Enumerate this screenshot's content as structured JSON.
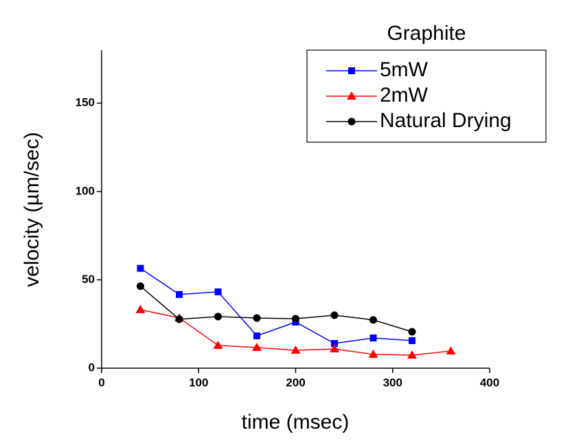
{
  "chart_data": {
    "type": "line",
    "x_label": "time (msec)",
    "y_label": "velocity (µm/sec)",
    "legend_title": "Graphite",
    "legend": "upper right",
    "grid": false,
    "xlim": [
      0,
      400
    ],
    "ylim": [
      0,
      180
    ],
    "xticks": [
      0,
      100,
      200,
      300,
      400
    ],
    "yticks": [
      0,
      50,
      100,
      150
    ],
    "series": [
      {
        "name": "5mW",
        "color": "#0000ff",
        "marker": "square",
        "x": [
          40,
          80,
          120,
          160,
          200,
          240,
          280,
          320
        ],
        "values": [
          56.5,
          41.7,
          43.2,
          18.3,
          26.1,
          14.0,
          17.1,
          15.6
        ]
      },
      {
        "name": "2mW",
        "color": "#ff0000",
        "marker": "triangle",
        "x": [
          40,
          80,
          120,
          160,
          200,
          240,
          280,
          320,
          360
        ],
        "values": [
          33.1,
          28.4,
          12.9,
          11.7,
          10.1,
          10.9,
          7.8,
          7.4,
          9.7
        ]
      },
      {
        "name": "Natural Drying",
        "color": "#000000",
        "marker": "circle",
        "x": [
          40,
          80,
          120,
          160,
          200,
          240,
          280,
          320
        ],
        "values": [
          46.4,
          27.7,
          29.2,
          28.4,
          28.0,
          30.0,
          27.3,
          20.6
        ]
      }
    ]
  }
}
